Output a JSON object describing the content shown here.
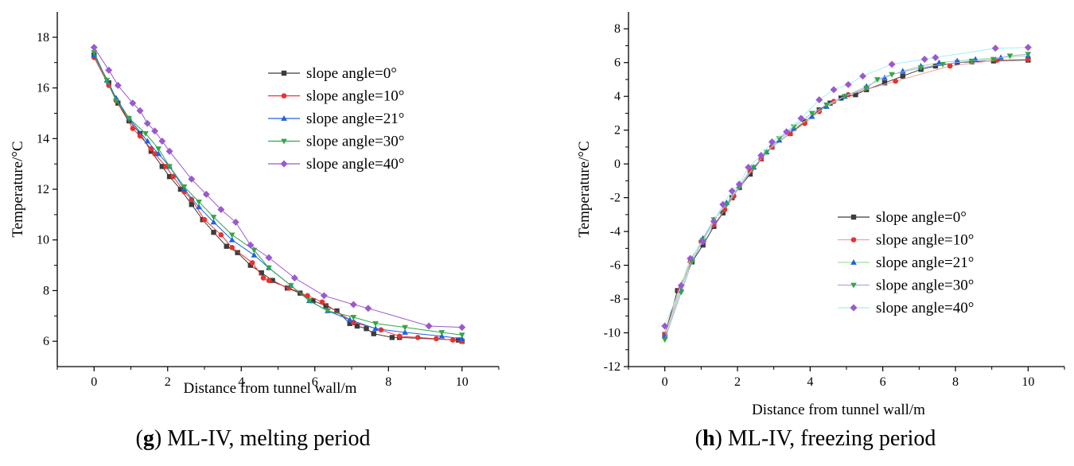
{
  "colors": {
    "series": [
      "#3c3c3c",
      "#e8322f",
      "#2160e0",
      "#2fa845",
      "#9b59d0"
    ],
    "series_line_b": [
      "#3c3c3c",
      "#f0a0a0",
      "#9ee0a0",
      "#a8a8f0",
      "#a0f0f0"
    ],
    "series_marker_b": [
      "#3c3c3c",
      "#e8322f",
      "#2160e0",
      "#2fa845",
      "#9b59d0"
    ]
  },
  "chart_data": [
    {
      "type": "line",
      "caption": {
        "letter": "g",
        "text": "ML-IV, melting period"
      },
      "xlabel": "Distance from tunnel wall/m",
      "ylabel": "Temperature/°C",
      "xlim": [
        -1,
        11
      ],
      "ylim": [
        5,
        19
      ],
      "xticks": [
        0,
        2,
        4,
        6,
        8,
        10
      ],
      "xtick_labels": [
        "0",
        "2",
        "4",
        "6",
        "8",
        "10"
      ],
      "yticks": [
        6,
        8,
        10,
        12,
        14,
        16,
        18
      ],
      "ytick_labels": [
        "6",
        "8",
        "10",
        "12",
        "14",
        "16",
        "18"
      ],
      "legend_position": "top-right",
      "series": [
        {
          "name": "slope angle=0°",
          "marker": "square",
          "x": [
            0,
            0.4,
            0.65,
            0.95,
            1.25,
            1.55,
            1.85,
            2.05,
            2.35,
            2.65,
            2.95,
            3.25,
            3.6,
            3.9,
            4.25,
            4.55,
            4.85,
            5.25,
            5.6,
            5.95,
            6.3,
            6.6,
            6.95,
            7.15,
            7.4,
            7.6,
            8.1,
            8.3,
            9.9,
            10
          ],
          "y": [
            17.3,
            16.2,
            15.4,
            14.7,
            14.2,
            13.5,
            12.9,
            12.5,
            12.0,
            11.4,
            10.8,
            10.3,
            9.75,
            9.5,
            9.0,
            8.7,
            8.4,
            8.1,
            7.9,
            7.6,
            7.4,
            7.2,
            6.7,
            6.6,
            6.5,
            6.3,
            6.15,
            6.15,
            6.05,
            6.0
          ]
        },
        {
          "name": "slope angle=10°",
          "marker": "circle",
          "x": [
            0,
            0.4,
            0.6,
            1.05,
            1.25,
            1.55,
            1.65,
            1.95,
            2.15,
            2.45,
            2.65,
            3.0,
            3.45,
            3.75,
            4.3,
            4.6,
            4.75,
            5.3,
            5.8,
            6.2,
            7.05,
            7.8,
            8.3,
            8.8,
            9.3,
            9.75,
            10
          ],
          "y": [
            17.2,
            16.1,
            15.5,
            14.4,
            14.1,
            13.6,
            13.4,
            12.9,
            12.5,
            11.9,
            11.6,
            10.8,
            10.2,
            9.7,
            9.1,
            8.5,
            8.4,
            8.1,
            7.8,
            7.55,
            6.75,
            6.45,
            6.2,
            6.15,
            6.1,
            6.05,
            6.0
          ]
        },
        {
          "name": "slope angle=21°",
          "marker": "triangle-up",
          "x": [
            0,
            0.35,
            0.6,
            0.95,
            1.45,
            1.75,
            2.05,
            2.45,
            2.85,
            3.25,
            3.75,
            4.35,
            4.75,
            5.35,
            5.85,
            6.35,
            6.95,
            7.65,
            8.45,
            9.45,
            10
          ],
          "y": [
            17.3,
            16.3,
            15.6,
            14.8,
            13.9,
            13.4,
            12.9,
            12.0,
            11.3,
            10.7,
            10.0,
            9.4,
            8.9,
            8.2,
            7.6,
            7.2,
            6.85,
            6.5,
            6.35,
            6.2,
            6.1
          ]
        },
        {
          "name": "slope angle=30°",
          "marker": "triangle-down",
          "x": [
            0,
            0.35,
            0.6,
            0.95,
            1.4,
            1.75,
            2.05,
            2.45,
            2.85,
            3.25,
            3.75,
            4.35,
            4.75,
            5.35,
            5.85,
            6.35,
            7.05,
            7.65,
            8.45,
            9.45,
            10
          ],
          "y": [
            17.4,
            16.3,
            15.5,
            14.8,
            14.2,
            13.6,
            12.9,
            12.1,
            11.5,
            10.9,
            10.2,
            9.6,
            8.9,
            8.2,
            7.6,
            7.2,
            6.95,
            6.7,
            6.55,
            6.35,
            6.25
          ]
        },
        {
          "name": "slope angle=40°",
          "marker": "diamond",
          "x": [
            0,
            0.4,
            0.65,
            1.05,
            1.25,
            1.45,
            1.65,
            1.85,
            2.05,
            2.65,
            3.05,
            3.45,
            3.85,
            4.25,
            4.75,
            5.45,
            6.25,
            7.05,
            7.45,
            9.1,
            10
          ],
          "y": [
            17.6,
            16.7,
            16.1,
            15.4,
            15.1,
            14.6,
            14.3,
            13.9,
            13.5,
            12.4,
            11.8,
            11.2,
            10.7,
            9.8,
            9.3,
            8.5,
            7.8,
            7.45,
            7.3,
            6.6,
            6.55
          ]
        }
      ]
    },
    {
      "type": "line",
      "caption": {
        "letter": "h",
        "text": "ML-IV, freezing period"
      },
      "xlabel": "Distance from tunnel wall/m",
      "ylabel": "Temperature/°C",
      "xlim": [
        -1,
        11
      ],
      "ylim": [
        -12,
        9
      ],
      "xticks": [
        0,
        2,
        4,
        6,
        8,
        10
      ],
      "xtick_labels": [
        "0",
        "2",
        "4",
        "6",
        "8",
        "10"
      ],
      "yticks": [
        -12,
        -10,
        -8,
        -6,
        -4,
        -2,
        0,
        2,
        4,
        6,
        8
      ],
      "ytick_labels": [
        "-12",
        "-10",
        "-8",
        "-6",
        "-4",
        "-2",
        "0",
        "2",
        "4",
        "6",
        "8"
      ],
      "legend_position": "bottom-right",
      "series": [
        {
          "name": "slope angle=0°",
          "marker": "square",
          "x": [
            0,
            0.35,
            0.75,
            1.05,
            1.35,
            1.6,
            1.85,
            2.05,
            2.35,
            2.65,
            2.95,
            3.45,
            3.85,
            4.25,
            4.55,
            4.85,
            5.25,
            5.55,
            6.05,
            6.55,
            7.05,
            7.45,
            8.05,
            8.45,
            9.05,
            10
          ],
          "y": [
            -10.1,
            -7.5,
            -5.8,
            -4.8,
            -3.7,
            -2.9,
            -2.0,
            -1.4,
            -0.6,
            0.3,
            1.0,
            1.8,
            2.5,
            3.2,
            3.6,
            3.9,
            4.1,
            4.4,
            4.8,
            5.2,
            5.6,
            5.8,
            6.0,
            6.05,
            6.1,
            6.15
          ]
        },
        {
          "name": "slope angle=10°",
          "marker": "circle",
          "x": [
            0,
            0.4,
            0.7,
            1.0,
            1.35,
            1.65,
            1.9,
            2.05,
            2.35,
            2.65,
            2.95,
            3.45,
            3.85,
            4.25,
            4.65,
            5.05,
            6.35,
            7.85,
            9.15,
            10
          ],
          "y": [
            -10.1,
            -7.5,
            -5.8,
            -4.6,
            -3.6,
            -2.7,
            -1.9,
            -1.3,
            -0.4,
            0.3,
            1.0,
            1.8,
            2.4,
            3.1,
            3.7,
            4.1,
            4.9,
            5.8,
            6.15,
            6.2
          ]
        },
        {
          "name": "slope angle=21°",
          "marker": "triangle-up",
          "x": [
            0,
            0.45,
            0.75,
            1.05,
            1.35,
            1.7,
            2.05,
            2.45,
            2.8,
            3.15,
            3.55,
            4.05,
            4.45,
            4.95,
            5.55,
            6.05,
            6.55,
            7.05,
            7.55,
            8.05,
            8.55,
            9.25,
            10
          ],
          "y": [
            -10.2,
            -7.4,
            -5.6,
            -4.4,
            -3.3,
            -2.3,
            -1.3,
            -0.2,
            0.7,
            1.4,
            2.1,
            2.8,
            3.4,
            4.0,
            4.6,
            5.1,
            5.5,
            5.8,
            6.0,
            6.1,
            6.2,
            6.3,
            6.4
          ]
        },
        {
          "name": "slope angle=30°",
          "marker": "triangle-down",
          "x": [
            0,
            0.45,
            0.75,
            1.05,
            1.35,
            1.7,
            2.05,
            2.45,
            2.8,
            3.15,
            3.55,
            4.05,
            4.45,
            4.95,
            5.55,
            5.85,
            6.25,
            7.05,
            7.65,
            8.45,
            9.05,
            9.5,
            10
          ],
          "y": [
            -10.4,
            -7.6,
            -5.8,
            -4.5,
            -3.3,
            -2.4,
            -1.4,
            -0.2,
            0.7,
            1.5,
            2.2,
            3.0,
            3.5,
            4.0,
            4.5,
            5.0,
            5.3,
            5.7,
            5.9,
            6.1,
            6.2,
            6.4,
            6.5
          ]
        },
        {
          "name": "slope angle=40°",
          "marker": "diamond",
          "x": [
            0,
            0.45,
            0.7,
            1.05,
            1.35,
            1.6,
            1.85,
            2.05,
            2.3,
            2.65,
            2.95,
            3.35,
            3.75,
            4.25,
            4.65,
            5.05,
            5.45,
            6.25,
            7.15,
            7.45,
            9.1,
            10
          ],
          "y": [
            -9.6,
            -7.2,
            -5.6,
            -4.6,
            -3.4,
            -2.4,
            -1.6,
            -1.2,
            -0.2,
            0.5,
            1.3,
            1.9,
            2.7,
            3.8,
            4.4,
            4.7,
            5.2,
            5.9,
            6.2,
            6.3,
            6.85,
            6.9
          ]
        }
      ]
    }
  ]
}
